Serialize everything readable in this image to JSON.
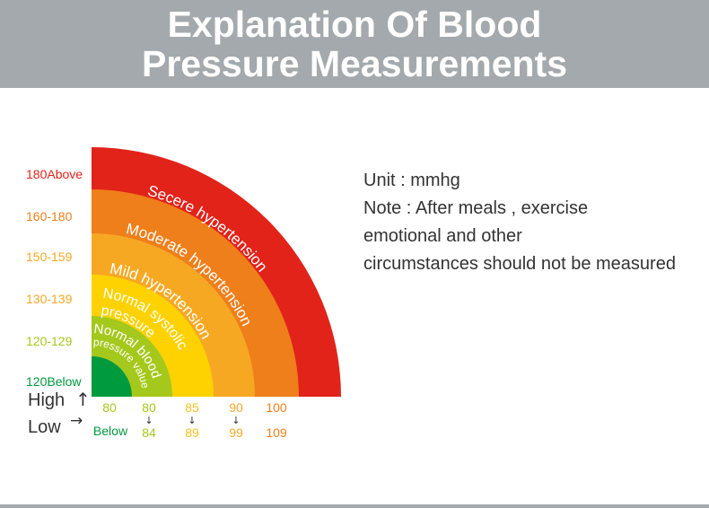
{
  "title_line1": "Explanation Of Blood",
  "title_line2": "Pressure Measurements",
  "notes": {
    "unit": "Unit : mmhg",
    "note_line1": "Note : After meals , exercise",
    "note_line2": "emotional and other",
    "note_line3": "circumstances should not be measured"
  },
  "axis": {
    "high": "High",
    "low": "Low",
    "up_arrow": "↑",
    "right_arrow": "→",
    "down_arrow": "↓"
  },
  "colors": {
    "severe": "#e2231a",
    "moderate": "#ef7f1a",
    "mild": "#f7a823",
    "normal_systolic": "#fdd200",
    "normal": "#a5c81d",
    "optimal": "#009a3e"
  },
  "chart_data": {
    "type": "stacked-quarter-arcs",
    "systolic_levels": [
      {
        "label": "180Above",
        "color": "#e2231a"
      },
      {
        "label": "160-180",
        "color": "#ef7f1a"
      },
      {
        "label": "150-159",
        "color": "#f7a823"
      },
      {
        "label": "130-139",
        "color": "#f7a823"
      },
      {
        "label": "120-129",
        "color": "#a5c81d"
      },
      {
        "label": "120Below",
        "color": "#009a3e"
      }
    ],
    "bands": [
      {
        "name": "Secere hypertension",
        "color": "#e2231a"
      },
      {
        "name": "Moderate hypertension",
        "color": "#ef7f1a"
      },
      {
        "name": "Mild hypertension",
        "color": "#f7a823"
      },
      {
        "name": "Normal systolic",
        "name2": "pressure",
        "color": "#fdd200"
      },
      {
        "name": "Normal blood",
        "name2": "pressure value",
        "color": "#a5c81d"
      },
      {
        "name": "",
        "color": "#009a3e"
      }
    ],
    "diastolic_ticks": [
      {
        "top": "80",
        "bottom": "Below",
        "arrow": false,
        "top_color": "#a5c81d",
        "bottom_color": "#009a3e"
      },
      {
        "top": "80",
        "bottom": "84",
        "arrow": true,
        "top_color": "#a5c81d",
        "bottom_color": "#a5c81d"
      },
      {
        "top": "85",
        "bottom": "89",
        "arrow": true,
        "top_color": "#f7c21b",
        "bottom_color": "#f7c21b"
      },
      {
        "top": "90",
        "bottom": "99",
        "arrow": true,
        "top_color": "#f7a823",
        "bottom_color": "#f7a823"
      },
      {
        "top": "100",
        "bottom": "109",
        "arrow": false,
        "top_color": "#ef7f1a",
        "bottom_color": "#ef7f1a"
      }
    ]
  }
}
